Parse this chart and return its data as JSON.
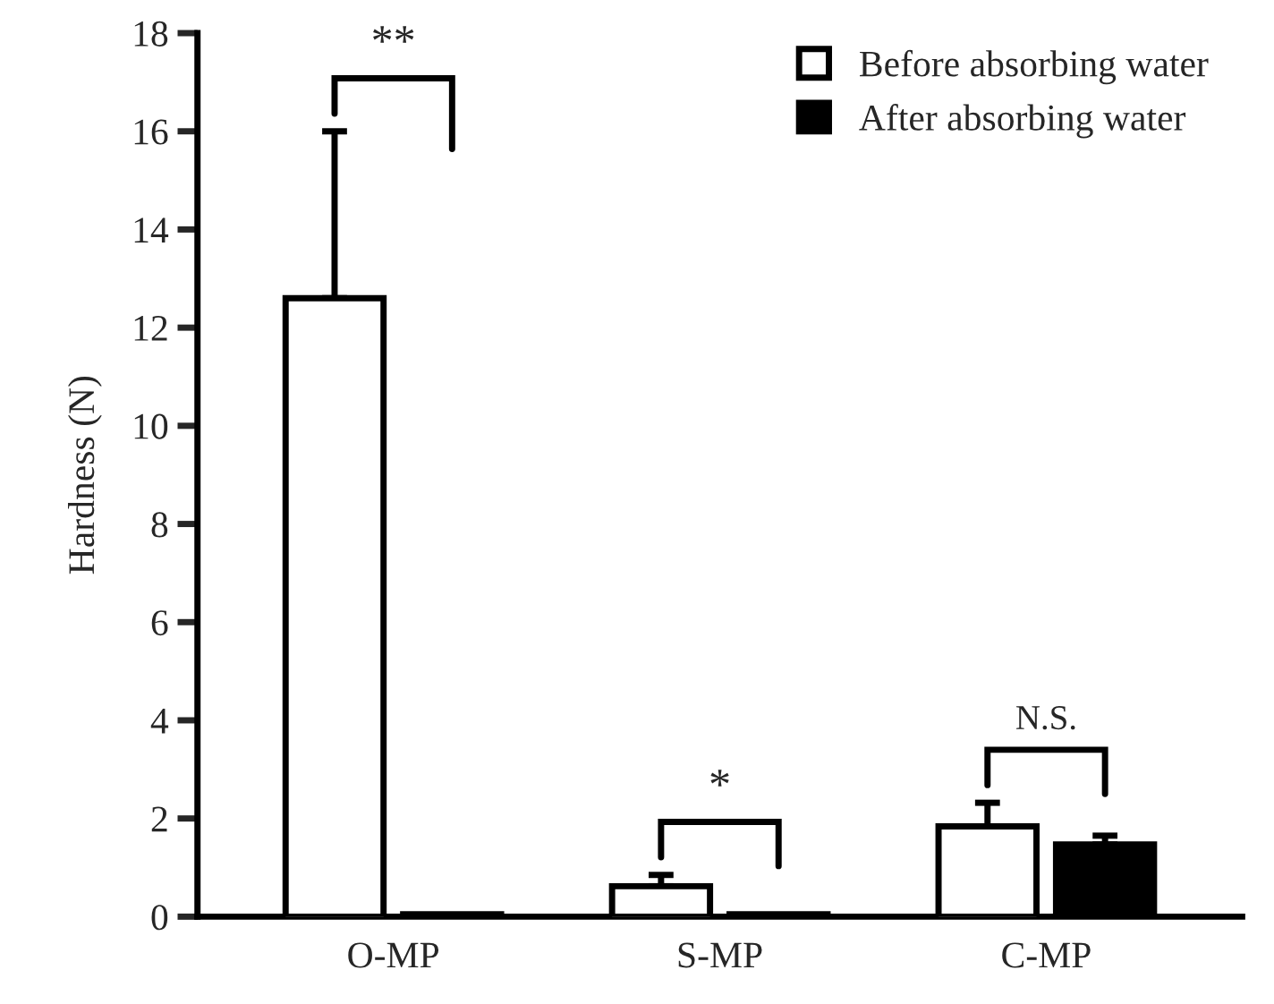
{
  "chart_data": {
    "type": "bar",
    "ylabel": "Hardness (N)",
    "categories": [
      "O-MP",
      "S-MP",
      "C-MP"
    ],
    "series": [
      {
        "name": "Before absorbing water",
        "color": "#ffffff",
        "values": [
          12.6,
          0.62,
          1.84
        ],
        "errors": [
          [
            12.6,
            16
          ],
          [
            0.62,
            0.85
          ],
          [
            1.84,
            2.32
          ]
        ]
      },
      {
        "name": "After absorbing water",
        "color": "#000000",
        "values": [
          0.05,
          0.05,
          1.47
        ],
        "errors": [
          null,
          null,
          [
            1.47,
            1.65
          ]
        ]
      }
    ],
    "ylim": [
      0,
      18
    ],
    "yticks": [
      0,
      2,
      4,
      6,
      8,
      10,
      12,
      14,
      16,
      18
    ],
    "legend": "top right",
    "grid": false,
    "annotations": [
      "**",
      "*",
      "N.S."
    ]
  }
}
